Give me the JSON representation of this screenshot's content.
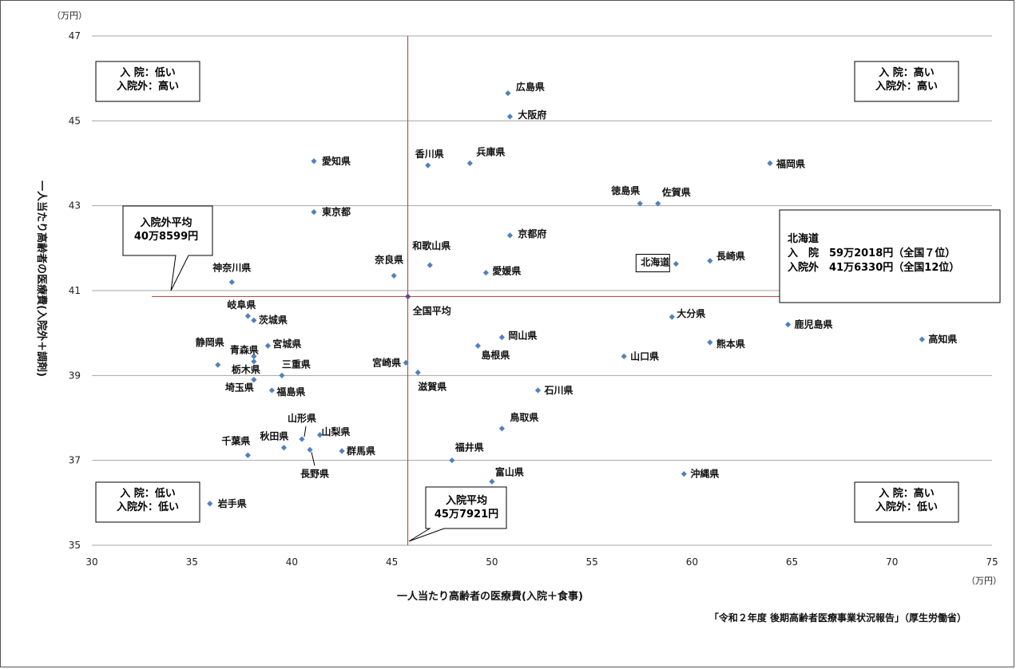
{
  "chart_data": {
    "type": "scatter",
    "xlabel": "一人当たり高齢者の医療費(入院＋食事)",
    "ylabel": "一人当たり高齢者の医療費(入院外＋調剤)",
    "xunit": "（万円）",
    "yunit": "（万円）",
    "xlim": [
      30,
      75
    ],
    "ylim": [
      35,
      47
    ],
    "xticks": [
      30,
      35,
      40,
      45,
      50,
      55,
      60,
      65,
      70,
      75
    ],
    "yticks": [
      35,
      37,
      39,
      41,
      43,
      45,
      47
    ],
    "grid": "horizontal",
    "point_color": "#4f81bd",
    "avg_line_color": "#c0504d",
    "points": [
      {
        "name": "広島県",
        "x": 50.8,
        "y": 45.65
      },
      {
        "name": "大阪府",
        "x": 50.9,
        "y": 45.1
      },
      {
        "name": "愛知県",
        "x": 41.1,
        "y": 44.05
      },
      {
        "name": "香川県",
        "x": 46.8,
        "y": 43.95
      },
      {
        "name": "兵庫県",
        "x": 48.9,
        "y": 44.0
      },
      {
        "name": "福岡県",
        "x": 63.9,
        "y": 44.0
      },
      {
        "name": "徳島県",
        "x": 57.4,
        "y": 43.05
      },
      {
        "name": "佐賀県",
        "x": 58.3,
        "y": 43.05
      },
      {
        "name": "東京都",
        "x": 41.1,
        "y": 42.85
      },
      {
        "name": "京都府",
        "x": 50.9,
        "y": 42.3
      },
      {
        "name": "北海道",
        "x": 59.2,
        "y": 41.63
      },
      {
        "name": "長崎県",
        "x": 60.9,
        "y": 41.7
      },
      {
        "name": "和歌山県",
        "x": 46.9,
        "y": 41.6
      },
      {
        "name": "奈良県",
        "x": 45.1,
        "y": 41.35
      },
      {
        "name": "愛媛県",
        "x": 49.7,
        "y": 41.42
      },
      {
        "name": "神奈川県",
        "x": 37.0,
        "y": 41.2
      },
      {
        "name": "全国平均",
        "x": 45.8,
        "y": 40.86
      },
      {
        "name": "大分県",
        "x": 59.0,
        "y": 40.38
      },
      {
        "name": "鹿児島県",
        "x": 64.8,
        "y": 40.2
      },
      {
        "name": "岐阜県",
        "x": 37.8,
        "y": 40.4
      },
      {
        "name": "茨城県",
        "x": 38.1,
        "y": 40.3
      },
      {
        "name": "岡山県",
        "x": 50.5,
        "y": 39.9
      },
      {
        "name": "宮城県",
        "x": 38.8,
        "y": 39.7
      },
      {
        "name": "熊本県",
        "x": 60.9,
        "y": 39.78
      },
      {
        "name": "高知県",
        "x": 71.5,
        "y": 39.85
      },
      {
        "name": "島根県",
        "x": 49.3,
        "y": 39.7
      },
      {
        "name": "青森県",
        "x": 38.1,
        "y": 39.45
      },
      {
        "name": "静岡県",
        "x": 36.3,
        "y": 39.25
      },
      {
        "name": "栃木県",
        "x": 38.1,
        "y": 39.33
      },
      {
        "name": "山口県",
        "x": 56.6,
        "y": 39.45
      },
      {
        "name": "宮崎県",
        "x": 45.7,
        "y": 39.3
      },
      {
        "name": "三重県",
        "x": 39.5,
        "y": 39.0
      },
      {
        "name": "滋賀県",
        "x": 46.3,
        "y": 39.07
      },
      {
        "name": "埼玉県",
        "x": 38.1,
        "y": 38.9
      },
      {
        "name": "福島県",
        "x": 39.0,
        "y": 38.65
      },
      {
        "name": "石川県",
        "x": 52.3,
        "y": 38.65
      },
      {
        "name": "鳥取県",
        "x": 50.5,
        "y": 37.75
      },
      {
        "name": "山形県",
        "x": 40.5,
        "y": 37.5
      },
      {
        "name": "山梨県",
        "x": 41.4,
        "y": 37.6
      },
      {
        "name": "秋田県",
        "x": 39.6,
        "y": 37.3
      },
      {
        "name": "長野県",
        "x": 40.9,
        "y": 37.25
      },
      {
        "name": "群馬県",
        "x": 42.5,
        "y": 37.22
      },
      {
        "name": "千葉県",
        "x": 37.8,
        "y": 37.12
      },
      {
        "name": "福井県",
        "x": 48.0,
        "y": 37.0
      },
      {
        "name": "沖縄県",
        "x": 59.6,
        "y": 36.68
      },
      {
        "name": "富山県",
        "x": 50.0,
        "y": 36.5
      },
      {
        "name": "岩手県",
        "x": 35.9,
        "y": 35.98
      }
    ],
    "avg_x": 45.7921,
    "avg_y": 40.8599,
    "annotations": {
      "avg_y_label": [
        "入院外平均",
        "40万8599円"
      ],
      "avg_x_label": [
        "入院平均",
        "45万7921円"
      ],
      "hokkaido": [
        "北海道",
        "入　院　59万2018円（全国７位）",
        "入院外　41万6330円（全国12位）"
      ],
      "quadrant_tl": [
        "入 院：低い",
        "入院外：高い"
      ],
      "quadrant_tr": [
        "入 院：高い",
        "入院外：高い"
      ],
      "quadrant_bl": [
        "入 院：低い",
        "入院外：低い"
      ],
      "quadrant_br": [
        "入 院：高い",
        "入院外：低い"
      ]
    },
    "source": "「令和２年度 後期高齢者医療事業状況報告」（厚生労働省）"
  }
}
